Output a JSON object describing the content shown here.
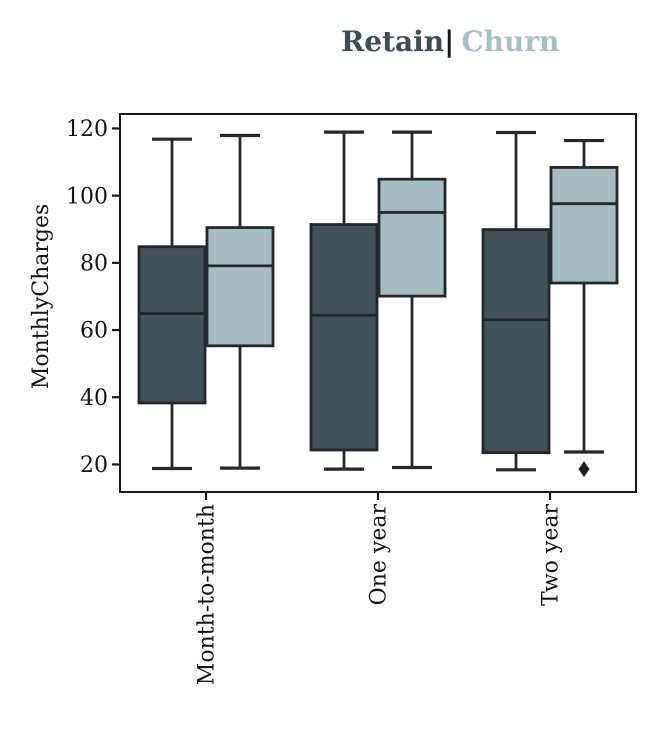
{
  "title": {
    "retain": "Retain",
    "separator": "|",
    "churn": "Churn"
  },
  "colors": {
    "retain_title": "#3b4e55",
    "churn_title": "#a6c1c6",
    "separator": "#101417",
    "retain_box": "#435159",
    "churn_box": "#a7bcc1",
    "box_line": "#23282d",
    "axis": "#17191c",
    "tick_text": "#141414",
    "outlier": "#1a1e23",
    "background": "#ffffff"
  },
  "chart_data": {
    "type": "grouped_boxplot",
    "title": "Retain| Churn",
    "xlabel": "",
    "ylabel": "MonthlyCharges",
    "categories": [
      "Month-to-month",
      "One year",
      "Two year"
    ],
    "y_ticks": [
      20,
      40,
      60,
      80,
      100,
      120
    ],
    "ylim": [
      11.8,
      124.3
    ],
    "grid": false,
    "legend": {
      "position": "top",
      "entries": [
        "Retain",
        "Churn"
      ]
    },
    "series": [
      {
        "name": "Retain",
        "color": "#435159",
        "boxes": [
          {
            "category": "Month-to-month",
            "whisker_low": 18.8,
            "q1": 38.3,
            "median": 64.9,
            "q3": 84.8,
            "whisker_high": 116.8,
            "outliers": []
          },
          {
            "category": "One year",
            "whisker_low": 18.6,
            "q1": 24.3,
            "median": 64.4,
            "q3": 91.4,
            "whisker_high": 118.9,
            "outliers": []
          },
          {
            "category": "Two year",
            "whisker_low": 18.4,
            "q1": 23.5,
            "median": 63.1,
            "q3": 89.9,
            "whisker_high": 118.8,
            "outliers": []
          }
        ]
      },
      {
        "name": "Churn",
        "color": "#a7bcc1",
        "boxes": [
          {
            "category": "Month-to-month",
            "whisker_low": 18.9,
            "q1": 55.3,
            "median": 79.1,
            "q3": 90.5,
            "whisker_high": 117.9,
            "outliers": []
          },
          {
            "category": "One year",
            "whisker_low": 19.1,
            "q1": 70.1,
            "median": 95.0,
            "q3": 104.9,
            "whisker_high": 118.9,
            "outliers": []
          },
          {
            "category": "Two year",
            "whisker_low": 23.7,
            "q1": 74.0,
            "median": 97.6,
            "q3": 108.4,
            "whisker_high": 116.4,
            "outliers": [
              18.6
            ]
          }
        ]
      }
    ]
  }
}
